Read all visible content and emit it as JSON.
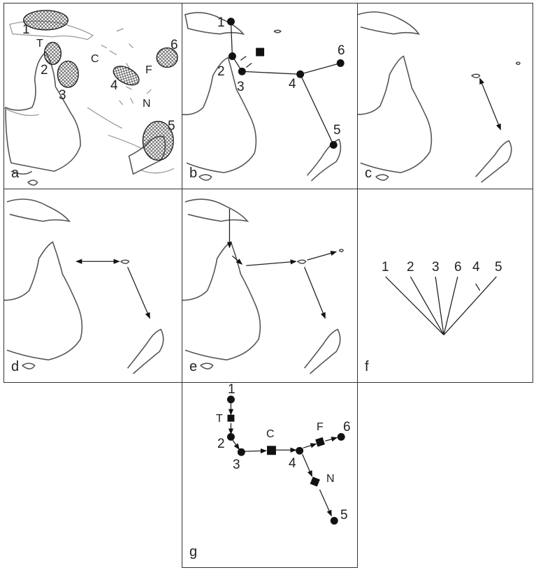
{
  "panels": {
    "a": {
      "label": "a",
      "areas": [
        "1",
        "2",
        "3",
        "4",
        "5",
        "6"
      ],
      "barriers": [
        "T",
        "C",
        "F",
        "N"
      ]
    },
    "b": {
      "label": "b",
      "nodes": [
        "1",
        "2",
        "3",
        "4",
        "5",
        "6"
      ]
    },
    "c": {
      "label": "c"
    },
    "d": {
      "label": "d"
    },
    "e": {
      "label": "e"
    },
    "f": {
      "label": "f",
      "leaves": [
        "1",
        "2",
        "3",
        "6",
        "4",
        "5"
      ]
    },
    "g": {
      "label": "g",
      "nodes": [
        "1",
        "2",
        "3",
        "4",
        "5",
        "6"
      ],
      "barriers": [
        "T",
        "C",
        "F",
        "N"
      ]
    }
  },
  "colors": {
    "ink": "#111111",
    "coast": "#555555",
    "border": "#333333"
  }
}
